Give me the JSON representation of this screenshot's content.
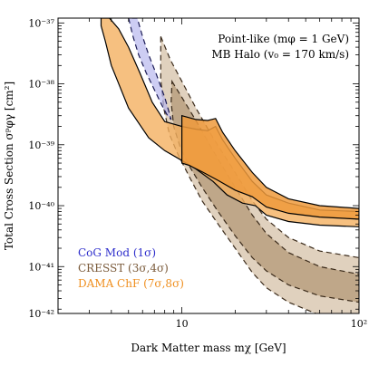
{
  "chart_data": {
    "type": "area",
    "title": "",
    "xlabel": "Dark Matter mass   mχ  [GeV]",
    "ylabel": "Total Cross Section  σᵖφγ [cm²]",
    "x_scale": "log",
    "y_scale": "log",
    "xlim": [
      2,
      100
    ],
    "ylim": [
      1.7e-42,
      1.2e-37
    ],
    "x_ticks": [
      {
        "value": 10,
        "label": "10"
      },
      {
        "value": 100,
        "label": "10²"
      }
    ],
    "y_ticks": [
      {
        "value": 1e-42,
        "label": "10⁻⁴²"
      },
      {
        "value": 1e-41,
        "label": "10⁻⁴¹"
      },
      {
        "value": 1e-40,
        "label": "10⁻⁴⁰"
      },
      {
        "value": 1e-39,
        "label": "10⁻³⁹"
      },
      {
        "value": 1e-38,
        "label": "10⁻³⁸"
      },
      {
        "value": 1e-37,
        "label": "10⁻³⁷"
      }
    ],
    "annotations": [
      "Point-like (mφ = 1 GeV)",
      "MB Halo (v₀ = 170 km/s)"
    ],
    "legend_position": "bottom-left",
    "series": [
      {
        "name": "CoG Mod  (1σ)",
        "color": "#3b3bd6",
        "fill": "#b8b8ee",
        "style": "dashed",
        "region": [
          [
            5.0,
            1.2e-37
          ],
          [
            5.3,
            6e-38
          ],
          [
            5.7,
            3e-38
          ],
          [
            6.3,
            1.5e-38
          ],
          [
            7.0,
            8e-39
          ],
          [
            7.7,
            4.5e-39
          ],
          [
            8.3,
            3e-39
          ],
          [
            8.7,
            2.6e-39
          ],
          [
            8.0,
            6e-39
          ],
          [
            7.2,
            1.4e-38
          ],
          [
            6.5,
            3e-38
          ],
          [
            6.0,
            6e-38
          ],
          [
            5.6,
            1.2e-37
          ]
        ]
      },
      {
        "name": "CRESST  (3σ,4σ)",
        "color": "#7a5a3a",
        "fill": "#d6c2a8",
        "style": "dashed",
        "outer": [
          [
            7.6,
            6e-38
          ],
          [
            8.6,
            2.5e-38
          ],
          [
            10,
            1.1e-38
          ],
          [
            12,
            4e-39
          ],
          [
            15,
            1.3e-39
          ],
          [
            20,
            3.5e-40
          ],
          [
            25,
            1.2e-40
          ],
          [
            30,
            6e-41
          ],
          [
            40,
            3e-41
          ],
          [
            60,
            1.8e-41
          ],
          [
            100,
            1.4e-41
          ],
          [
            100,
            1.3e-42
          ],
          [
            60,
            1.6e-42
          ],
          [
            40,
            2.6e-42
          ],
          [
            30,
            4.5e-42
          ],
          [
            25,
            8e-42
          ],
          [
            20,
            2e-41
          ],
          [
            16,
            5e-41
          ],
          [
            13,
            1.2e-40
          ],
          [
            11,
            3e-40
          ],
          [
            9.5,
            7e-40
          ],
          [
            8.5,
            1.5e-39
          ],
          [
            7.9,
            4e-39
          ],
          [
            7.6,
            1.2e-38
          ]
        ],
        "inner": [
          [
            8.8,
            1.1e-38
          ],
          [
            10,
            6e-39
          ],
          [
            12,
            2.5e-39
          ],
          [
            15,
            8e-40
          ],
          [
            20,
            2e-40
          ],
          [
            25,
            7e-41
          ],
          [
            30,
            3.5e-41
          ],
          [
            40,
            1.7e-41
          ],
          [
            60,
            1e-41
          ],
          [
            100,
            7.5e-42
          ],
          [
            100,
            2.6e-42
          ],
          [
            60,
            3.3e-42
          ],
          [
            40,
            5e-42
          ],
          [
            30,
            8.5e-42
          ],
          [
            25,
            1.4e-41
          ],
          [
            20,
            3.2e-41
          ],
          [
            16,
            8e-41
          ],
          [
            13,
            2e-40
          ],
          [
            11,
            4.5e-40
          ],
          [
            9.8,
            9e-40
          ],
          [
            9.0,
            2e-39
          ],
          [
            8.7,
            5e-39
          ]
        ]
      },
      {
        "name": "DAMA ChF  (7σ,8σ)",
        "color": "#ef8f1f",
        "fill": "#f4b060",
        "style": "solid",
        "outer": [
          [
            3.5,
            1.2e-37
          ],
          [
            3.9,
            1.2e-37
          ],
          [
            4.4,
            8e-38
          ],
          [
            5.0,
            4e-38
          ],
          [
            5.8,
            1.5e-38
          ],
          [
            6.8,
            5e-39
          ],
          [
            8,
            2.4e-39
          ],
          [
            10,
            2e-39
          ],
          [
            12,
            1.8e-39
          ],
          [
            14,
            1.7e-39
          ],
          [
            15.5,
            2e-39
          ],
          [
            17,
            1.2e-39
          ],
          [
            20,
            6e-40
          ],
          [
            25,
            2.5e-40
          ],
          [
            30,
            1.5e-40
          ],
          [
            40,
            1.1e-40
          ],
          [
            60,
            8.5e-41
          ],
          [
            100,
            8e-41
          ],
          [
            100,
            4.5e-41
          ],
          [
            60,
            4.8e-41
          ],
          [
            40,
            5.5e-41
          ],
          [
            30,
            7e-41
          ],
          [
            26,
            1e-40
          ],
          [
            22,
            1.1e-40
          ],
          [
            18,
            1.5e-40
          ],
          [
            15,
            2.5e-40
          ],
          [
            12,
            4e-40
          ],
          [
            10,
            5.5e-40
          ],
          [
            8,
            8e-40
          ],
          [
            6.5,
            1.3e-39
          ],
          [
            5,
            4e-39
          ],
          [
            4,
            2e-38
          ],
          [
            3.7,
            5e-38
          ],
          [
            3.5,
            9e-38
          ]
        ],
        "inner": [
          [
            10,
            3e-39
          ],
          [
            12,
            2.6e-39
          ],
          [
            14,
            2.5e-39
          ],
          [
            15.5,
            2.7e-39
          ],
          [
            17,
            1.6e-39
          ],
          [
            20,
            8e-40
          ],
          [
            25,
            3.5e-40
          ],
          [
            30,
            2e-40
          ],
          [
            40,
            1.3e-40
          ],
          [
            60,
            1e-40
          ],
          [
            100,
            9e-41
          ],
          [
            100,
            6e-41
          ],
          [
            60,
            6.5e-41
          ],
          [
            40,
            7.5e-41
          ],
          [
            30,
            9.5e-41
          ],
          [
            25,
            1.4e-40
          ],
          [
            20,
            1.8e-40
          ],
          [
            16,
            2.6e-40
          ],
          [
            13,
            3.6e-40
          ],
          [
            11,
            4.6e-40
          ],
          [
            10,
            5e-40
          ]
        ]
      }
    ]
  }
}
